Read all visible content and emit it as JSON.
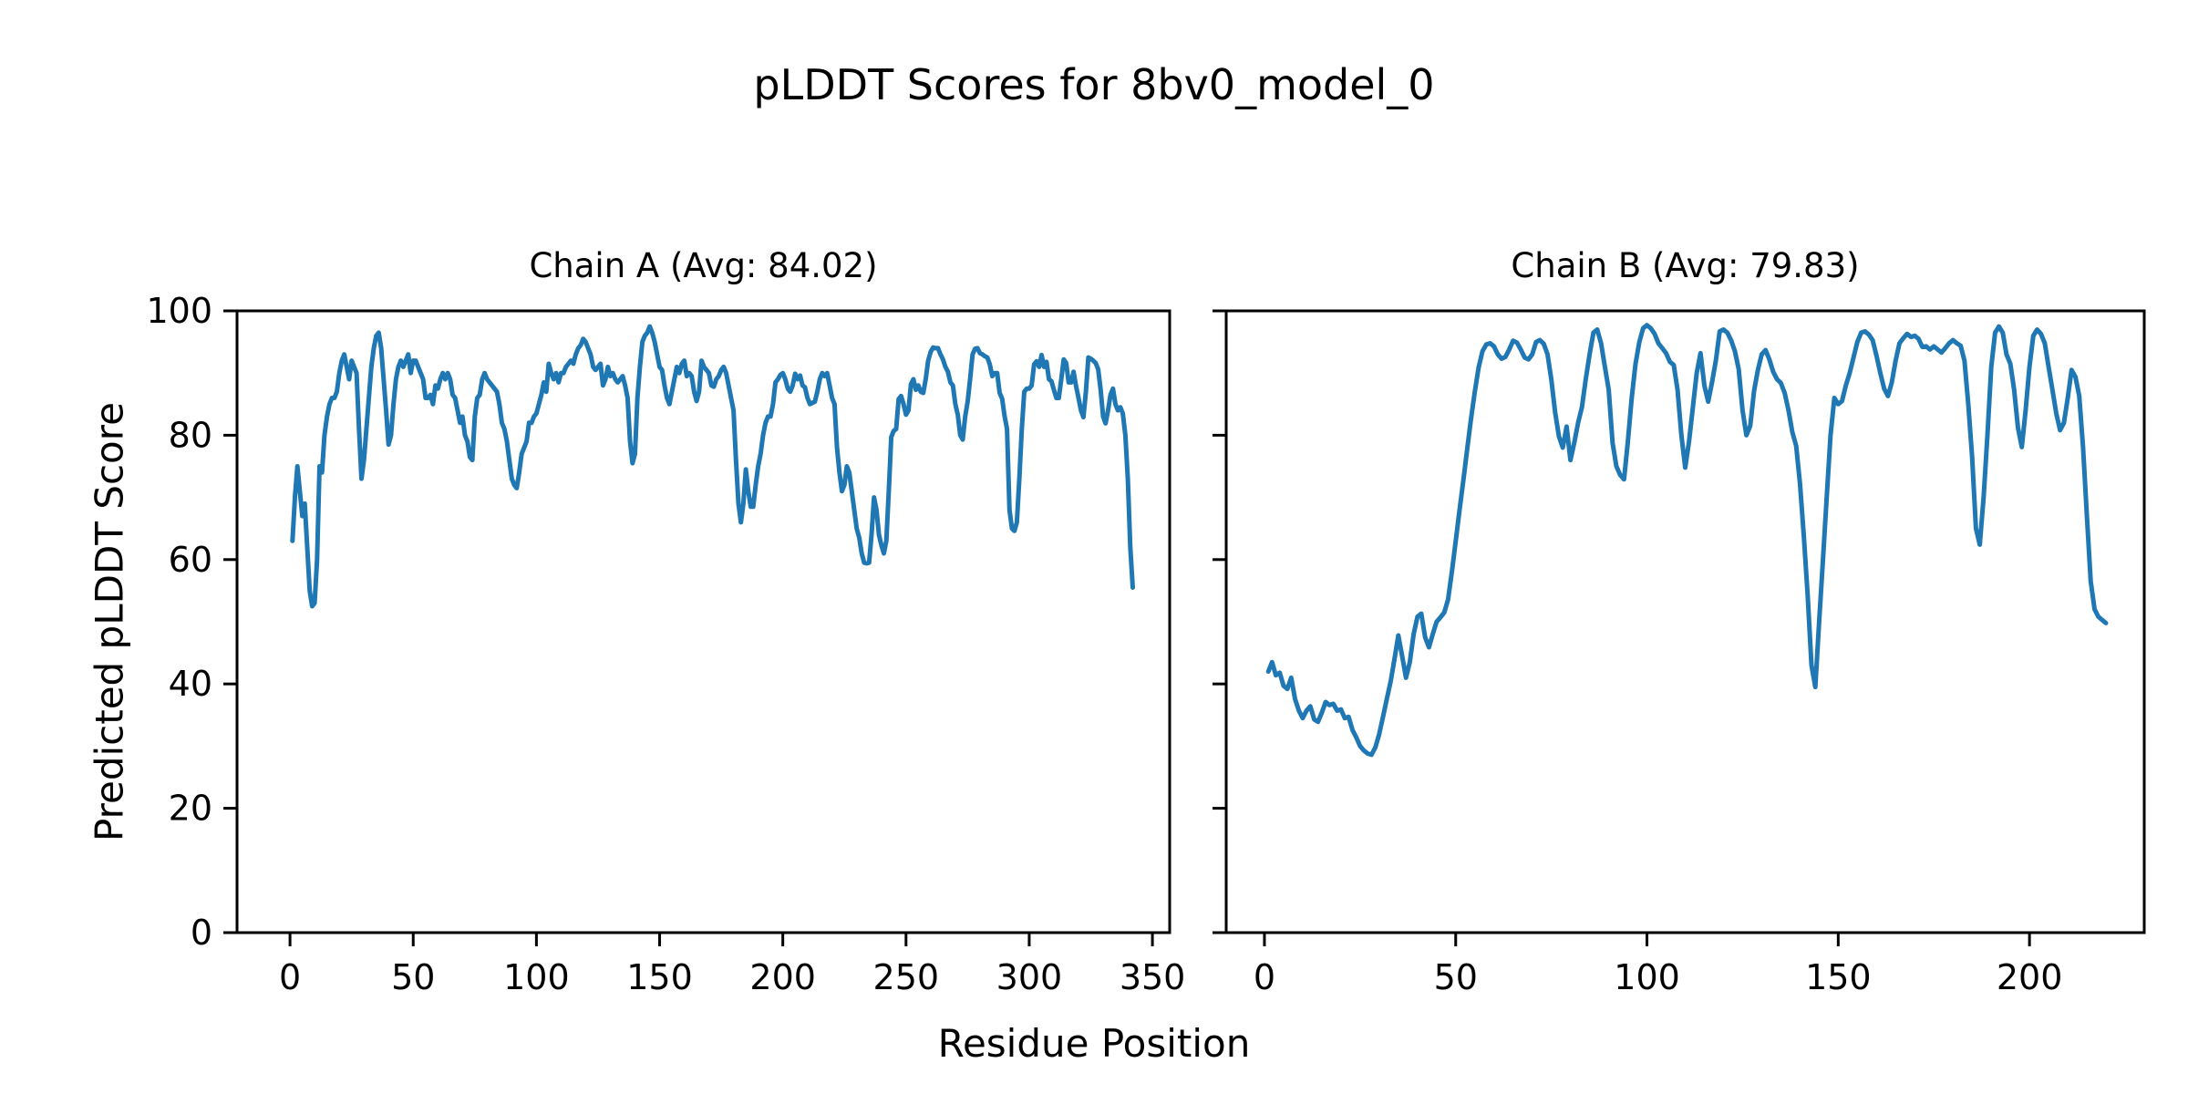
{
  "figure": {
    "title": "pLDDT Scores for 8bv0_model_0",
    "xlabel": "Residue Position",
    "ylabel": "Predicted pLDDT Score",
    "line_color": "#1f77b4",
    "background_color": "#ffffff",
    "axis_color": "#000000"
  },
  "chart_data": [
    {
      "type": "line",
      "title": "Chain A (Avg: 84.02)",
      "avg": 84.02,
      "legend": null,
      "grid": false,
      "x_start": 1,
      "x_step": 1,
      "xlim": [
        -21.5,
        357
      ],
      "ylim": [
        0,
        100
      ],
      "xticks": [
        0,
        50,
        100,
        150,
        200,
        250,
        300,
        350
      ],
      "yticks": [
        0,
        20,
        40,
        60,
        80,
        100
      ],
      "values": [
        63,
        70,
        75,
        71,
        67,
        69,
        62,
        55,
        52.5,
        53,
        60,
        75,
        74,
        80,
        83,
        85,
        86,
        86,
        87,
        90,
        92,
        93,
        91,
        89,
        92,
        91,
        90,
        81,
        73,
        76,
        81,
        86,
        91,
        94,
        96,
        96.5,
        94,
        89,
        84,
        78.5,
        80,
        85,
        89,
        91,
        92,
        91,
        92,
        93,
        90,
        92,
        92,
        91,
        90,
        89,
        86,
        86,
        86.5,
        85,
        88,
        87.5,
        89,
        90,
        89,
        90,
        89,
        86.5,
        86,
        84,
        82,
        83,
        80,
        79,
        76.5,
        76,
        83,
        86,
        86.5,
        89,
        90,
        89,
        88.5,
        88,
        87.5,
        87,
        85,
        82,
        81,
        79,
        76,
        73,
        72,
        71.5,
        74,
        77,
        78,
        79,
        82,
        82,
        83,
        83.5,
        85,
        86.5,
        88.5,
        87,
        91.5,
        90,
        89,
        90,
        88.5,
        90,
        90,
        91,
        91.5,
        92,
        91.5,
        93,
        94,
        94.5,
        95.5,
        95,
        94,
        93,
        91,
        90.5,
        91,
        91.5,
        88,
        89,
        91,
        89.5,
        90,
        89,
        88.5,
        89,
        89.5,
        88,
        86,
        79,
        75.5,
        77,
        86,
        91,
        95,
        96,
        96.5,
        97.5,
        96.5,
        95,
        93,
        91,
        90.5,
        88,
        86,
        85,
        87,
        89,
        91,
        90,
        91.5,
        92,
        89.5,
        90,
        89.5,
        87,
        85.5,
        87,
        92,
        91,
        90.5,
        90,
        88,
        87.8,
        89,
        89.5,
        90.5,
        91,
        90,
        88,
        86,
        84,
        76,
        69,
        66,
        69,
        74.5,
        71,
        68.5,
        68.5,
        72,
        75,
        77,
        80,
        82,
        83,
        83,
        85,
        88.5,
        89,
        89.7,
        90,
        89,
        87.5,
        87,
        88,
        89.9,
        89,
        89.6,
        88,
        87.7,
        86,
        85,
        85.2,
        85.4,
        87,
        89,
        90,
        89.5,
        90,
        88,
        86,
        85,
        78,
        74,
        71,
        72,
        75,
        74,
        71,
        68,
        65,
        63.5,
        61,
        59.5,
        59.4,
        59.5,
        64,
        70,
        68,
        64,
        62.3,
        61,
        63,
        71,
        79.7,
        80.7,
        81,
        85.8,
        86.3,
        85,
        83.3,
        84,
        88.2,
        89,
        87.3,
        88,
        87,
        86.8,
        89,
        92,
        93.4,
        94.1,
        94,
        94,
        93,
        92.2,
        91,
        90.2,
        88.5,
        88,
        85,
        83.3,
        80,
        79.3,
        83,
        85.4,
        89,
        93,
        93.9,
        94,
        93.2,
        93,
        92.7,
        92.5,
        91.4,
        89.5,
        90,
        90,
        86.8,
        85.9,
        83.1,
        81,
        68,
        65,
        64.6,
        66,
        73,
        81,
        87,
        87.5,
        87.5,
        88,
        91.4,
        91.9,
        91,
        92.9,
        91,
        91.8,
        89,
        88.7,
        87.3,
        86,
        86,
        89,
        92.2,
        91.6,
        88.5,
        88.5,
        90.2,
        87.9,
        86,
        84,
        82.9,
        87,
        92.5,
        92.3,
        92,
        91.6,
        90.6,
        87.3,
        83,
        81.9,
        84,
        86.5,
        87.5,
        85,
        84,
        84.5,
        83.5,
        80,
        73,
        62,
        55.5
      ]
    },
    {
      "type": "line",
      "title": "Chain B (Avg: 79.83)",
      "avg": 79.83,
      "legend": null,
      "grid": false,
      "x_start": 1,
      "x_step": 1,
      "xlim": [
        -10,
        230
      ],
      "ylim": [
        0,
        100
      ],
      "xticks": [
        0,
        50,
        100,
        150,
        200
      ],
      "yticks": [
        0,
        20,
        40,
        60,
        80,
        100
      ],
      "values": [
        42,
        43.5,
        41.4,
        41.8,
        39.7,
        39.2,
        41,
        37.6,
        35.7,
        34.5,
        35.7,
        36.4,
        34.3,
        33.9,
        35.4,
        37.1,
        36.6,
        36.8,
        35.7,
        35.9,
        34.5,
        34.7,
        32.6,
        31.4,
        30,
        29.3,
        28.8,
        28.6,
        29.8,
        31.9,
        34.7,
        37.6,
        40.4,
        44,
        47.8,
        44.5,
        41,
        43.5,
        48,
        50.8,
        51.3,
        47.5,
        45.9,
        48,
        50,
        50.7,
        51.5,
        53.6,
        58.1,
        63,
        67.9,
        72.7,
        77.7,
        82.6,
        87,
        90.9,
        93.5,
        94.6,
        94.8,
        94.3,
        93,
        92.3,
        92.6,
        93.8,
        95.2,
        94.9,
        93.8,
        92.5,
        92.2,
        93,
        95,
        95.3,
        94.7,
        93,
        89,
        83.7,
        79.8,
        78,
        81.4,
        76,
        78.8,
        82,
        84.5,
        89,
        93,
        96.5,
        97,
        94.8,
        91,
        87.3,
        78.8,
        75,
        73.6,
        72.9,
        79,
        86,
        91.5,
        95,
        97.2,
        97.7,
        97.2,
        96.3,
        94.8,
        94,
        93.2,
        91.8,
        91.3,
        87.3,
        80,
        74.8,
        79,
        84.5,
        90,
        93.2,
        88,
        85.4,
        88.5,
        92,
        96.7,
        97,
        96.5,
        95.3,
        93.5,
        90.6,
        84,
        80,
        81.5,
        87.1,
        90.5,
        93,
        93.7,
        92.2,
        90.2,
        89,
        88.4,
        86.8,
        84,
        80.5,
        78.3,
        72.2,
        63.8,
        54.3,
        43,
        39.5,
        50,
        60,
        70,
        80,
        86,
        85,
        85.5,
        88,
        90,
        92.5,
        95,
        96.5,
        96.7,
        96.2,
        95.3,
        92.8,
        90,
        87.5,
        86.3,
        88.5,
        92,
        94.8,
        95.6,
        96.3,
        95.8,
        96,
        95.5,
        94.2,
        94.3,
        93.8,
        94.3,
        93.8,
        93.3,
        94,
        94.8,
        95.3,
        94.8,
        94.4,
        92,
        85,
        76.5,
        65,
        62.4,
        70,
        80,
        91,
        96.5,
        97.5,
        96.5,
        93,
        91.5,
        87.3,
        81.2,
        78.1,
        84,
        91,
        96,
        97,
        96.3,
        94.8,
        91,
        87.3,
        83.5,
        80.8,
        82,
        86,
        90.5,
        89.4,
        86.3,
        78,
        67,
        56.5,
        52,
        50.8,
        50.3,
        49.8
      ]
    }
  ]
}
